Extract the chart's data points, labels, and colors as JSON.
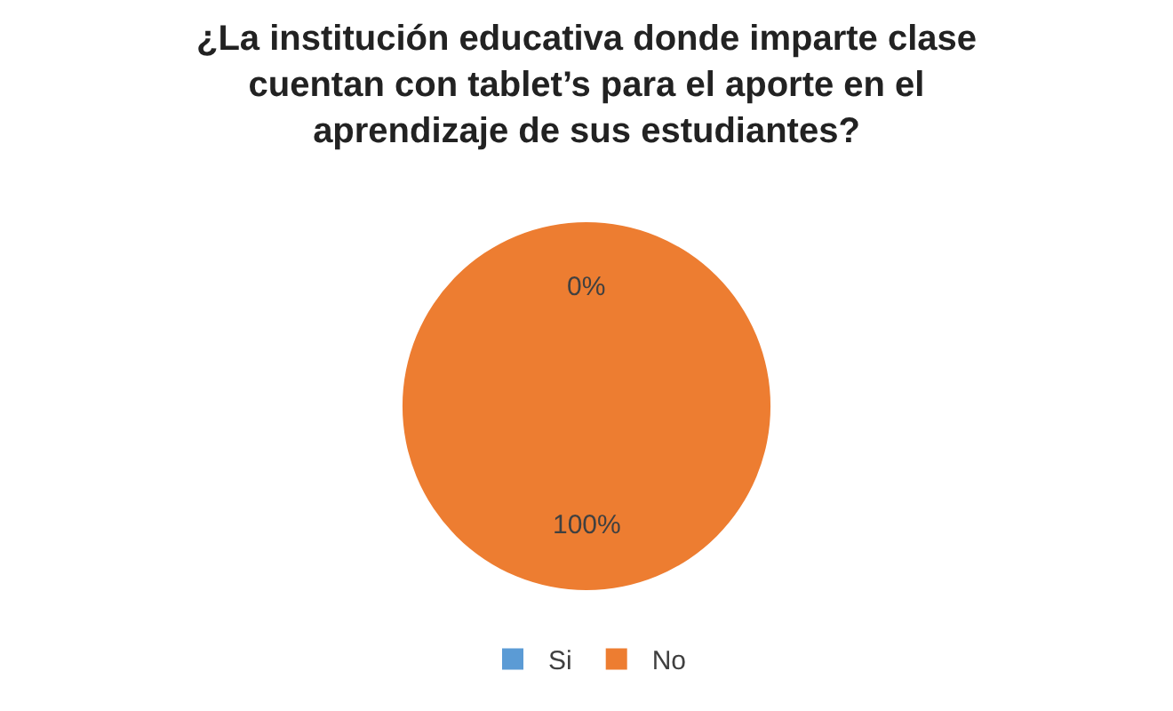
{
  "chart_data": {
    "type": "pie",
    "title": "¿La institución educativa donde imparte clase cuentan con tablet’s para el aporte en el aprendizaje de sus estudiantes?",
    "categories": [
      "Si",
      "No"
    ],
    "values": [
      0,
      100
    ],
    "colors": [
      "#5b9bd5",
      "#ed7d31"
    ],
    "value_labels": [
      "0%",
      "100%"
    ],
    "legend": "bottom"
  }
}
